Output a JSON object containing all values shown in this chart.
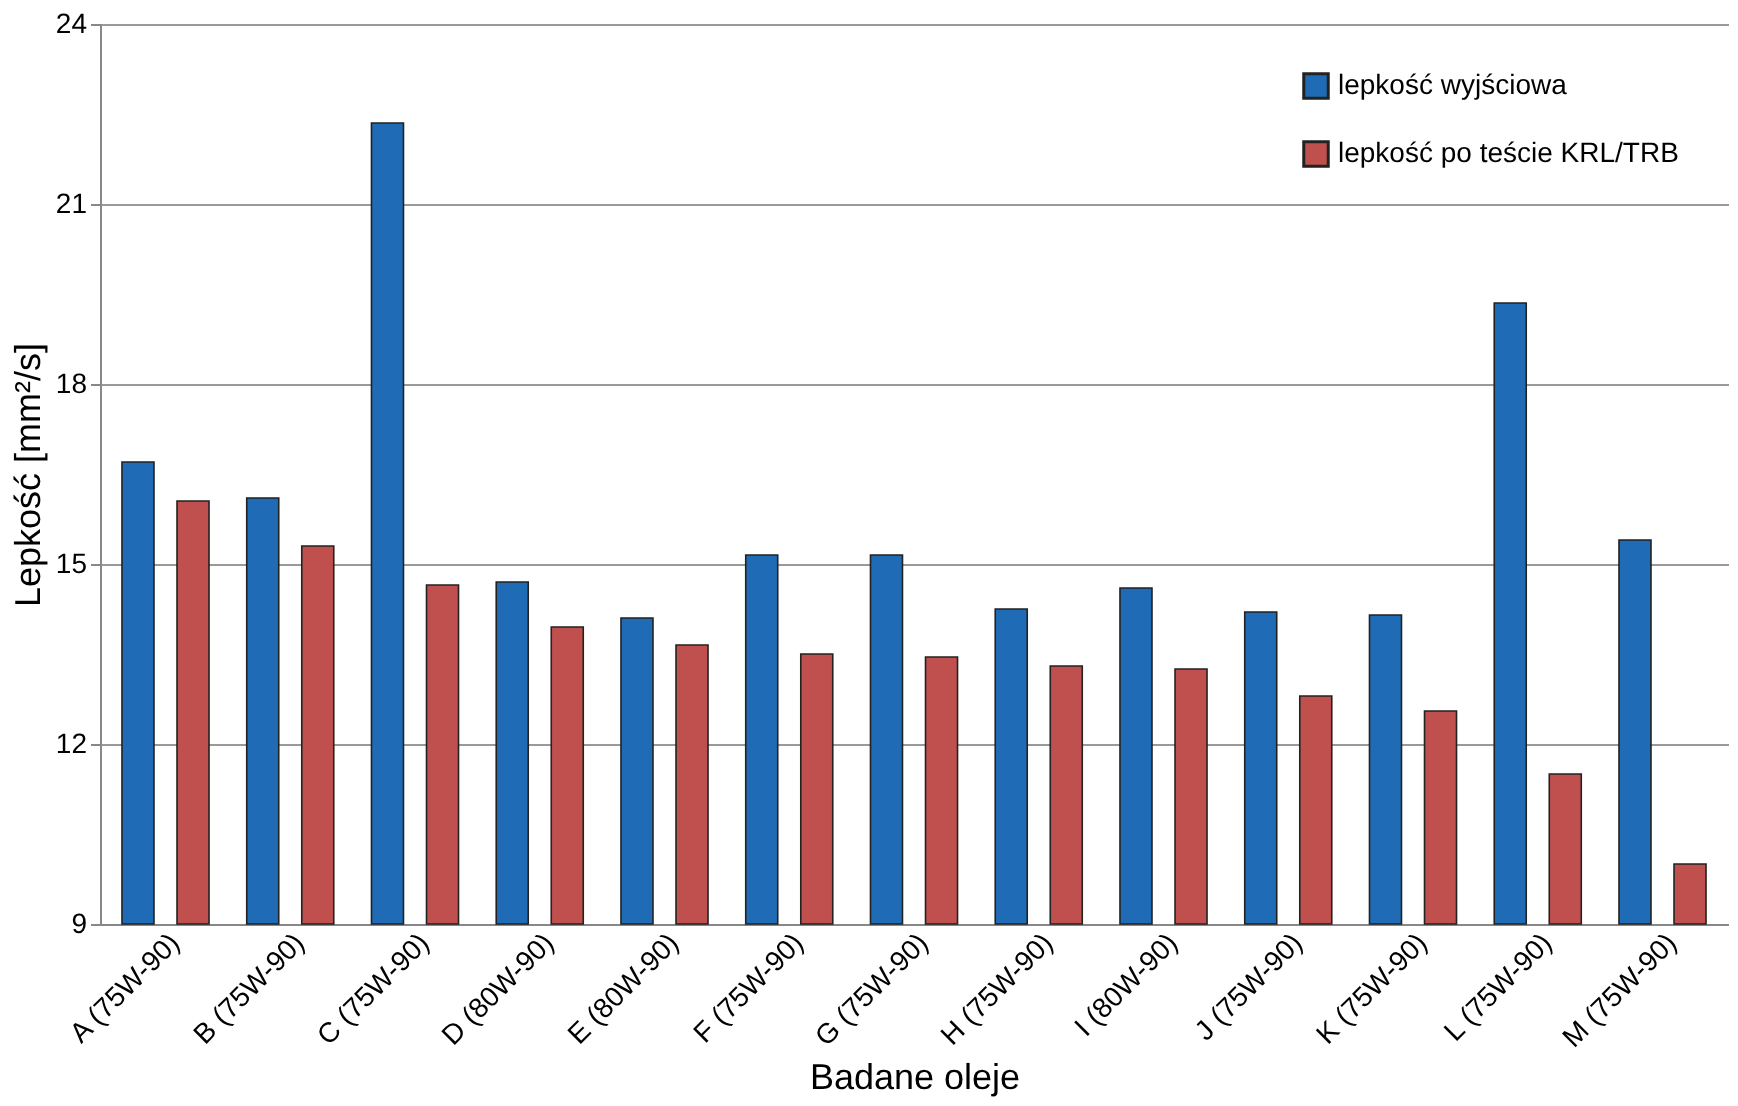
{
  "chart_data": {
    "type": "bar",
    "xlabel": "Badane oleje",
    "ylabel": "Lepkość [mm²/s]",
    "categories": [
      "A (75W-90)",
      "B (75W-90)",
      "C (75W-90)",
      "D (80W-90)",
      "E (80W-90)",
      "F (75W-90)",
      "G (75W-90)",
      "H (75W-90)",
      "I (80W-90)",
      "J (75W-90)",
      "K (75W-90)",
      "L (75W-90)",
      "M (75W-90)"
    ],
    "series": [
      {
        "name": "lepkość wyjściowa",
        "color": "#1f6bb5",
        "values": [
          16.7,
          16.1,
          22.35,
          14.7,
          14.1,
          15.15,
          15.15,
          14.25,
          14.6,
          14.2,
          14.15,
          19.35,
          15.4
        ]
      },
      {
        "name": "lepkość po teście KRL/TRB",
        "color": "#c0504d",
        "values": [
          16.05,
          15.3,
          14.65,
          13.95,
          13.65,
          13.5,
          13.45,
          13.3,
          13.25,
          12.8,
          12.55,
          11.5,
          10.0
        ]
      }
    ],
    "ylim": [
      9,
      24
    ],
    "yticks": [
      9,
      12,
      15,
      18,
      21,
      24
    ],
    "grid": "y",
    "legend": "top right"
  }
}
